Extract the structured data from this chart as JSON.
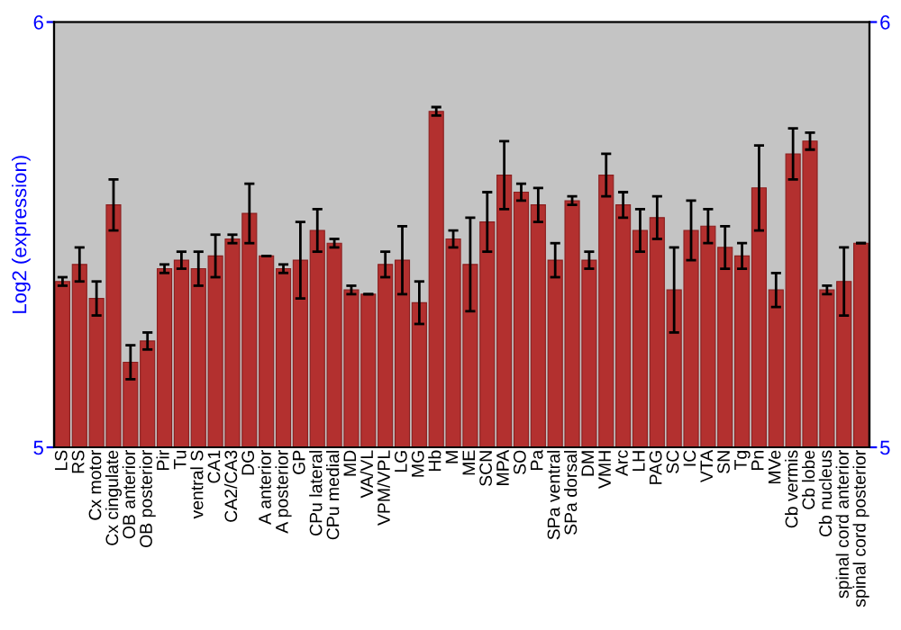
{
  "chart_data": {
    "type": "bar",
    "ylabel": "Log2 (expression)",
    "categories": [
      "LS",
      "RS",
      "Cx motor",
      "Cx cingulate",
      "OB anterior",
      "OB posterior",
      "Pir",
      "Tu",
      "ventral S",
      "CA1",
      "CA2/CA3",
      "DG",
      "A anterior",
      "A posterior",
      "GP",
      "CPu lateral",
      "CPu medial",
      "MD",
      "VA/VL",
      "VPM/VPL",
      "LG",
      "MG",
      "Hb",
      "M",
      "ME",
      "SCN",
      "MPA",
      "SO",
      "Pa",
      "SPa ventral",
      "SPa dorsal",
      "DM",
      "VMH",
      "Arc",
      "LH",
      "PAG",
      "SC",
      "IC",
      "VTA",
      "SN",
      "Tg",
      "Pn",
      "MVe",
      "Cb vermis",
      "Cb lobe",
      "Cb nucleus",
      "spinal cord anterior",
      "spinal cord posterior"
    ],
    "series": [
      {
        "color": "#b3302f",
        "values": [
          5.39,
          5.43,
          5.35,
          5.57,
          5.2,
          5.25,
          5.42,
          5.44,
          5.42,
          5.45,
          5.49,
          5.55,
          5.45,
          5.42,
          5.44,
          5.51,
          5.48,
          5.37,
          5.36,
          5.43,
          5.44,
          5.34,
          5.79,
          5.49,
          5.43,
          5.53,
          5.64,
          5.6,
          5.57,
          5.44,
          5.58,
          5.44,
          5.64,
          5.57,
          5.51,
          5.54,
          5.37,
          5.51,
          5.52,
          5.47,
          5.45,
          5.61,
          5.37,
          5.69,
          5.72,
          5.37,
          5.39,
          5.48
        ],
        "errors": [
          0.01,
          0.04,
          0.04,
          0.06,
          0.04,
          0.02,
          0.01,
          0.02,
          0.04,
          0.05,
          0.01,
          0.07,
          0.0,
          0.01,
          0.09,
          0.05,
          0.01,
          0.01,
          0.0,
          0.03,
          0.08,
          0.05,
          0.01,
          0.02,
          0.11,
          0.07,
          0.08,
          0.02,
          0.04,
          0.04,
          0.01,
          0.02,
          0.05,
          0.03,
          0.05,
          0.05,
          0.1,
          0.07,
          0.04,
          0.05,
          0.03,
          0.1,
          0.04,
          0.06,
          0.02,
          0.01,
          0.08,
          0.0
        ]
      }
    ],
    "ylim": [
      5,
      6
    ],
    "yticks": [
      5,
      6
    ],
    "y2lim": [
      5,
      6
    ],
    "y2ticks": [
      5,
      6
    ],
    "grid": false
  }
}
